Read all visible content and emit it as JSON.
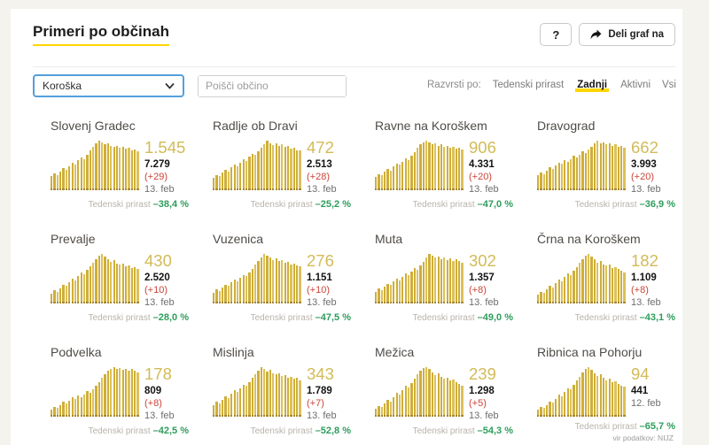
{
  "page": {
    "source_note": "vir podatkov: NIJZ"
  },
  "header": {
    "title": "Primeri po občinah",
    "help_button": "?",
    "share_button": "Deli graf na"
  },
  "filters": {
    "region_value": "Koroška",
    "search_placeholder": "Poišči občino",
    "sort_label": "Razvrsti po:",
    "sort_options": [
      {
        "label": "Tedenski prirast",
        "active": false
      },
      {
        "label": "Zadnji",
        "active": true
      },
      {
        "label": "Aktivni",
        "active": false
      },
      {
        "label": "Vsi",
        "active": false
      }
    ]
  },
  "colors": {
    "accent_yellow": "#ffd500",
    "bar_yellow": "#cfae39",
    "bar_yellow_light": "#dcc157",
    "bar_base_dark": "#a6872b",
    "big_number_gold": "#d2bb58",
    "delta_red": "#cc4437",
    "growth_green": "#2e9d5b",
    "page_bg": "#f4f3ee"
  },
  "cards": [
    {
      "name": "Slovenj Gradec",
      "last": "1.545",
      "total": "7.279",
      "delta": "(+29)",
      "date": "13. feb",
      "weekly_label": "Tedenski prirast",
      "weekly_value": "–38,4 %",
      "bars": [
        0.28,
        0.34,
        0.31,
        0.38,
        0.44,
        0.41,
        0.49,
        0.55,
        0.52,
        0.6,
        0.66,
        0.63,
        0.71,
        0.8,
        0.88,
        0.95,
        1.0,
        0.96,
        0.92,
        0.95,
        0.9,
        0.87,
        0.9,
        0.86,
        0.87,
        0.84,
        0.85,
        0.81,
        0.83,
        0.78
      ]
    },
    {
      "name": "Radlje ob Dravi",
      "last": "472",
      "total": "2.513",
      "delta": "(+28)",
      "date": "13. feb",
      "weekly_label": "Tedenski prirast",
      "weekly_value": "–25,2 %",
      "bars": [
        0.25,
        0.31,
        0.28,
        0.35,
        0.41,
        0.38,
        0.46,
        0.52,
        0.49,
        0.56,
        0.62,
        0.59,
        0.67,
        0.74,
        0.71,
        0.79,
        0.86,
        0.93,
        1.0,
        0.95,
        0.91,
        0.94,
        0.89,
        0.92,
        0.87,
        0.89,
        0.84,
        0.86,
        0.81,
        0.8
      ]
    },
    {
      "name": "Ravne na Koroškem",
      "last": "906",
      "total": "4.331",
      "delta": "(+20)",
      "date": "13. feb",
      "weekly_label": "Tedenski prirast",
      "weekly_value": "–47,0 %",
      "bars": [
        0.27,
        0.33,
        0.3,
        0.37,
        0.43,
        0.4,
        0.48,
        0.54,
        0.51,
        0.58,
        0.64,
        0.61,
        0.69,
        0.77,
        0.85,
        0.92,
        0.97,
        1.0,
        0.96,
        0.92,
        0.95,
        0.9,
        0.93,
        0.88,
        0.9,
        0.86,
        0.87,
        0.84,
        0.85,
        0.82
      ]
    },
    {
      "name": "Dravograd",
      "last": "662",
      "total": "3.993",
      "delta": "(+20)",
      "date": "13. feb",
      "weekly_label": "Tedenski prirast",
      "weekly_value": "–36,9 %",
      "bars": [
        0.3,
        0.36,
        0.33,
        0.4,
        0.46,
        0.43,
        0.5,
        0.56,
        0.53,
        0.6,
        0.57,
        0.63,
        0.69,
        0.66,
        0.72,
        0.78,
        0.75,
        0.82,
        0.88,
        0.94,
        1.0,
        0.95,
        0.97,
        0.92,
        0.94,
        0.9,
        0.92,
        0.88,
        0.9,
        0.86
      ]
    },
    {
      "name": "Prevalje",
      "last": "430",
      "total": "2.520",
      "delta": "(+10)",
      "date": "13. feb",
      "weekly_label": "Tedenski prirast",
      "weekly_value": "–28,0 %",
      "bars": [
        0.2,
        0.26,
        0.23,
        0.31,
        0.38,
        0.35,
        0.43,
        0.5,
        0.47,
        0.55,
        0.62,
        0.59,
        0.67,
        0.75,
        0.83,
        0.9,
        0.96,
        1.0,
        0.95,
        0.89,
        0.84,
        0.87,
        0.81,
        0.78,
        0.8,
        0.75,
        0.77,
        0.72,
        0.74,
        0.7
      ]
    },
    {
      "name": "Vuzenica",
      "last": "276",
      "total": "1.151",
      "delta": "(+10)",
      "date": "13. feb",
      "weekly_label": "Tedenski prirast",
      "weekly_value": "–47,5 %",
      "bars": [
        0.22,
        0.28,
        0.25,
        0.32,
        0.38,
        0.35,
        0.42,
        0.48,
        0.45,
        0.52,
        0.58,
        0.55,
        0.63,
        0.7,
        0.78,
        0.86,
        0.93,
        1.0,
        0.97,
        0.92,
        0.88,
        0.91,
        0.85,
        0.88,
        0.82,
        0.84,
        0.79,
        0.81,
        0.76,
        0.75
      ]
    },
    {
      "name": "Muta",
      "last": "302",
      "total": "1.357",
      "delta": "(+8)",
      "date": "13. feb",
      "weekly_label": "Tedenski prirast",
      "weekly_value": "–49,0 %",
      "bars": [
        0.24,
        0.3,
        0.27,
        0.34,
        0.4,
        0.37,
        0.44,
        0.5,
        0.47,
        0.54,
        0.6,
        0.57,
        0.64,
        0.71,
        0.68,
        0.76,
        0.84,
        0.92,
        1.0,
        0.96,
        0.92,
        0.95,
        0.9,
        0.93,
        0.88,
        0.91,
        0.86,
        0.89,
        0.85,
        0.83
      ]
    },
    {
      "name": "Črna na Koroškem",
      "last": "182",
      "total": "1.109",
      "delta": "(+8)",
      "date": "13. feb",
      "weekly_label": "Tedenski prirast",
      "weekly_value": "–43,1 %",
      "bars": [
        0.18,
        0.24,
        0.21,
        0.29,
        0.36,
        0.33,
        0.41,
        0.48,
        0.45,
        0.53,
        0.61,
        0.58,
        0.66,
        0.74,
        0.82,
        0.9,
        0.96,
        1.0,
        0.95,
        0.89,
        0.83,
        0.86,
        0.79,
        0.76,
        0.78,
        0.72,
        0.74,
        0.69,
        0.66,
        0.63
      ]
    },
    {
      "name": "Podvelka",
      "last": "178",
      "total": "809",
      "delta": "(+8)",
      "date": "13. feb",
      "weekly_label": "Tedenski prirast",
      "weekly_value": "–42,5 %",
      "bars": [
        0.15,
        0.2,
        0.18,
        0.24,
        0.3,
        0.27,
        0.33,
        0.39,
        0.36,
        0.42,
        0.39,
        0.45,
        0.51,
        0.48,
        0.55,
        0.62,
        0.7,
        0.78,
        0.86,
        0.93,
        0.97,
        1.0,
        0.96,
        0.98,
        0.94,
        0.97,
        0.93,
        0.96,
        0.92,
        0.9
      ]
    },
    {
      "name": "Mislinja",
      "last": "343",
      "total": "1.789",
      "delta": "(+7)",
      "date": "13. feb",
      "weekly_label": "Tedenski prirast",
      "weekly_value": "–52,8 %",
      "bars": [
        0.24,
        0.3,
        0.27,
        0.34,
        0.41,
        0.38,
        0.46,
        0.53,
        0.5,
        0.58,
        0.65,
        0.62,
        0.7,
        0.78,
        0.86,
        0.93,
        1.0,
        0.96,
        0.91,
        0.94,
        0.88,
        0.85,
        0.87,
        0.82,
        0.84,
        0.79,
        0.81,
        0.76,
        0.78,
        0.73
      ]
    },
    {
      "name": "Mežica",
      "last": "239",
      "total": "1.298",
      "delta": "(+5)",
      "date": "13. feb",
      "weekly_label": "Tedenski prirast",
      "weekly_value": "–54,3 %",
      "bars": [
        0.16,
        0.22,
        0.19,
        0.27,
        0.34,
        0.31,
        0.4,
        0.48,
        0.45,
        0.54,
        0.62,
        0.59,
        0.68,
        0.77,
        0.85,
        0.93,
        0.98,
        1.0,
        0.96,
        0.9,
        0.84,
        0.87,
        0.8,
        0.77,
        0.79,
        0.73,
        0.75,
        0.7,
        0.66,
        0.63
      ]
    },
    {
      "name": "Ribnica na Pohorju",
      "last": "94",
      "total": "441",
      "delta": "",
      "date": "12. feb",
      "weekly_label": "Tedenski prirast",
      "weekly_value": "–65,7 %",
      "bars": [
        0.14,
        0.19,
        0.17,
        0.24,
        0.31,
        0.28,
        0.36,
        0.44,
        0.41,
        0.5,
        0.58,
        0.55,
        0.64,
        0.73,
        0.81,
        0.89,
        0.96,
        1.0,
        0.95,
        0.88,
        0.82,
        0.85,
        0.78,
        0.74,
        0.76,
        0.7,
        0.72,
        0.66,
        0.62,
        0.6
      ]
    }
  ]
}
